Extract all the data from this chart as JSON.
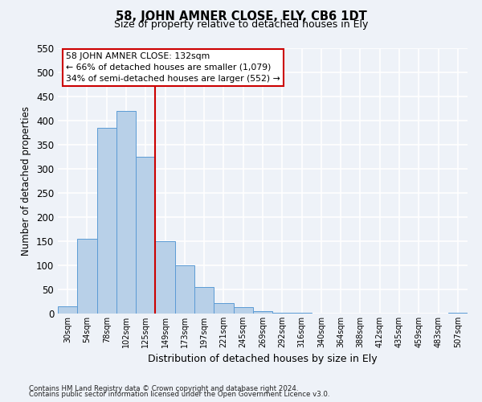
{
  "title": "58, JOHN AMNER CLOSE, ELY, CB6 1DT",
  "subtitle": "Size of property relative to detached houses in Ely",
  "xlabel": "Distribution of detached houses by size in Ely",
  "ylabel": "Number of detached properties",
  "bar_color": "#b8d0e8",
  "bar_edge_color": "#5b9bd5",
  "bin_labels": [
    "30sqm",
    "54sqm",
    "78sqm",
    "102sqm",
    "125sqm",
    "149sqm",
    "173sqm",
    "197sqm",
    "221sqm",
    "245sqm",
    "269sqm",
    "292sqm",
    "316sqm",
    "340sqm",
    "364sqm",
    "388sqm",
    "412sqm",
    "435sqm",
    "459sqm",
    "483sqm",
    "507sqm"
  ],
  "bar_values": [
    15,
    155,
    385,
    420,
    325,
    150,
    100,
    55,
    22,
    13,
    5,
    2,
    1,
    0,
    0,
    0,
    0,
    0,
    0,
    0,
    2
  ],
  "vline_pos": 4.5,
  "vline_color": "#cc0000",
  "ylim": [
    0,
    550
  ],
  "yticks": [
    0,
    50,
    100,
    150,
    200,
    250,
    300,
    350,
    400,
    450,
    500,
    550
  ],
  "annotation_title": "58 JOHN AMNER CLOSE: 132sqm",
  "annotation_line1": "← 66% of detached houses are smaller (1,079)",
  "annotation_line2": "34% of semi-detached houses are larger (552) →",
  "annotation_box_color": "#ffffff",
  "annotation_box_edge": "#cc0000",
  "footnote1": "Contains HM Land Registry data © Crown copyright and database right 2024.",
  "footnote2": "Contains public sector information licensed under the Open Government Licence v3.0.",
  "background_color": "#eef2f8",
  "grid_color": "#ffffff"
}
